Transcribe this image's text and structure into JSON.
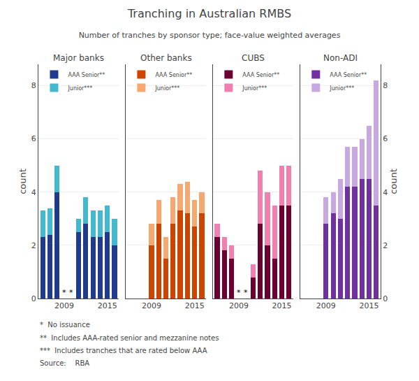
{
  "title": "Tranching in Australian RMBS",
  "subtitle": "Number of tranches by sponsor type; face-value weighted averages",
  "annotations": [
    "*  No issuance",
    "**  Includes AAA-rated senior and mezzanine notes",
    "***  Includes tranches that are rated below AAA",
    "Source:    RBA"
  ],
  "chart_data": [
    {
      "type": "bar",
      "title": "Major banks",
      "stacked": true,
      "grid": true,
      "legend": "upper left",
      "ylabel": "count",
      "x": [
        2006,
        2007,
        2008,
        2009,
        2010,
        2011,
        2012,
        2013,
        2014,
        2015,
        2016
      ],
      "xlim": [
        2005.4,
        2016.6
      ],
      "xticks": [
        2009,
        2015
      ],
      "ylim": [
        0,
        8.8
      ],
      "yticks": [
        0,
        2,
        4,
        6,
        8
      ],
      "series": [
        {
          "name": "AAA Senior**",
          "color": "#1f3a8f",
          "values": [
            2.3,
            2.4,
            4.0,
            0,
            0,
            2.5,
            2.8,
            2.3,
            2.3,
            2.5,
            2.0
          ]
        },
        {
          "name": "Junior***",
          "color": "#44b8cc",
          "values": [
            1.0,
            1.0,
            1.0,
            0,
            0,
            0.5,
            1.0,
            1.0,
            1.0,
            1.0,
            1.0
          ]
        }
      ],
      "annotations": [
        {
          "x": 2009,
          "text": "*"
        },
        {
          "x": 2010,
          "text": "*"
        }
      ]
    },
    {
      "type": "bar",
      "title": "Other banks",
      "stacked": true,
      "grid": true,
      "legend": "upper left",
      "tick_labels": "x",
      "x": [
        2006,
        2007,
        2008,
        2009,
        2010,
        2011,
        2012,
        2013,
        2014,
        2015,
        2016
      ],
      "xlim": [
        2005.4,
        2016.6
      ],
      "xticks": [
        2009,
        2015
      ],
      "ylim": [
        0,
        8.8
      ],
      "yticks": [
        0,
        2,
        4,
        6,
        8
      ],
      "series": [
        {
          "name": "AAA Senior**",
          "color": "#cc4400",
          "values": [
            0,
            0,
            0,
            2.0,
            2.8,
            1.5,
            2.8,
            3.3,
            3.2,
            2.7,
            3.2
          ]
        },
        {
          "name": "Junior***",
          "color": "#f5a870",
          "values": [
            0,
            0,
            0,
            0.8,
            0.9,
            0.8,
            1.0,
            1.0,
            1.2,
            1.0,
            0.8
          ]
        }
      ]
    },
    {
      "type": "bar",
      "title": "CUBS",
      "stacked": true,
      "grid": true,
      "legend": "upper left",
      "tick_labels": "x",
      "x": [
        2006,
        2007,
        2008,
        2009,
        2010,
        2011,
        2012,
        2013,
        2014,
        2015,
        2016
      ],
      "xlim": [
        2005.4,
        2016.6
      ],
      "xticks": [
        2009,
        2015
      ],
      "ylim": [
        0,
        8.8
      ],
      "yticks": [
        0,
        2,
        4,
        6,
        8
      ],
      "series": [
        {
          "name": "AAA Senior**",
          "color": "#6b0030",
          "values": [
            2.3,
            1.8,
            1.5,
            0,
            0,
            0.8,
            2.8,
            2.0,
            1.5,
            3.5,
            3.5
          ]
        },
        {
          "name": "Junior***",
          "color": "#f080b0",
          "values": [
            0.5,
            0.5,
            0.5,
            0,
            0,
            0.5,
            2.0,
            2.0,
            2.0,
            1.5,
            1.5
          ]
        }
      ],
      "annotations": [
        {
          "x": 2009,
          "text": "*"
        },
        {
          "x": 2010,
          "text": "*"
        }
      ]
    },
    {
      "type": "bar",
      "title": "Non-ADI",
      "stacked": true,
      "grid": true,
      "legend": "upper left",
      "ylabel": "count",
      "x": [
        2006,
        2007,
        2008,
        2009,
        2010,
        2011,
        2012,
        2013,
        2014,
        2015,
        2016
      ],
      "xlim": [
        2005.4,
        2016.6
      ],
      "xticks": [
        2009,
        2015
      ],
      "ylim": [
        0,
        8.8
      ],
      "yticks": [
        0,
        2,
        4,
        6,
        8
      ],
      "series": [
        {
          "name": "AAA Senior**",
          "color": "#7030a0",
          "values": [
            0,
            0,
            0,
            2.8,
            3.2,
            3.0,
            4.2,
            4.2,
            4.5,
            4.5,
            3.5
          ]
        },
        {
          "name": "Junior***",
          "color": "#c8a8e0",
          "values": [
            0,
            0,
            0,
            1.0,
            0.8,
            1.5,
            1.5,
            1.5,
            1.5,
            2.0,
            4.7
          ]
        }
      ]
    }
  ]
}
